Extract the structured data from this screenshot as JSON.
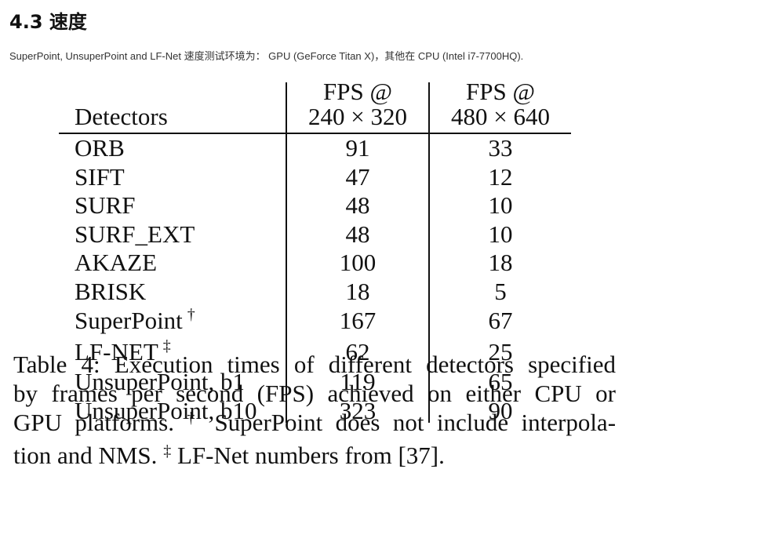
{
  "heading": "4.3 速度",
  "note": "SuperPoint, UnsuperPoint and LF-Net 速度测试环境为： GPU (GeForce Titan X)，其他在 CPU (Intel i7-7700HQ).",
  "table": {
    "header": {
      "detectors": "Detectors",
      "col1_line1": "FPS @",
      "col1_line2": "240 × 320",
      "col2_line1": "FPS @",
      "col2_line2": "480 × 640"
    },
    "rows": [
      {
        "name": "ORB",
        "mark": "",
        "fps_240x320": "91",
        "fps_480x640": "33"
      },
      {
        "name": "SIFT",
        "mark": "",
        "fps_240x320": "47",
        "fps_480x640": "12"
      },
      {
        "name": "SURF",
        "mark": "",
        "fps_240x320": "48",
        "fps_480x640": "10"
      },
      {
        "name": "SURF_EXT",
        "mark": "",
        "fps_240x320": "48",
        "fps_480x640": "10"
      },
      {
        "name": "AKAZE",
        "mark": "",
        "fps_240x320": "100",
        "fps_480x640": "18"
      },
      {
        "name": "BRISK",
        "mark": "",
        "fps_240x320": "18",
        "fps_480x640": "5"
      },
      {
        "name": "SuperPoint",
        "mark": "†",
        "fps_240x320": "167",
        "fps_480x640": "67"
      },
      {
        "name": "LF-NET",
        "mark": "‡",
        "fps_240x320": "62",
        "fps_480x640": "25"
      },
      {
        "name": "UnsuperPoint, b1",
        "mark": "",
        "fps_240x320": "119",
        "fps_480x640": "65"
      },
      {
        "name": "UnsuperPoint, b10",
        "mark": "",
        "fps_240x320": "323",
        "fps_480x640": "90"
      }
    ]
  },
  "caption": {
    "line1": "Table 4: Execution times of different detectors specified",
    "line2": "by frames per second (FPS) achieved on either CPU or",
    "line3_a": "GPU platforms.",
    "line3_mark": "†",
    "line3_b": " SuperPoint does not include interpola-",
    "line4_a": "tion and NMS.",
    "line4_mark": "‡",
    "line4_b": " LF-Net numbers from [37]."
  }
}
